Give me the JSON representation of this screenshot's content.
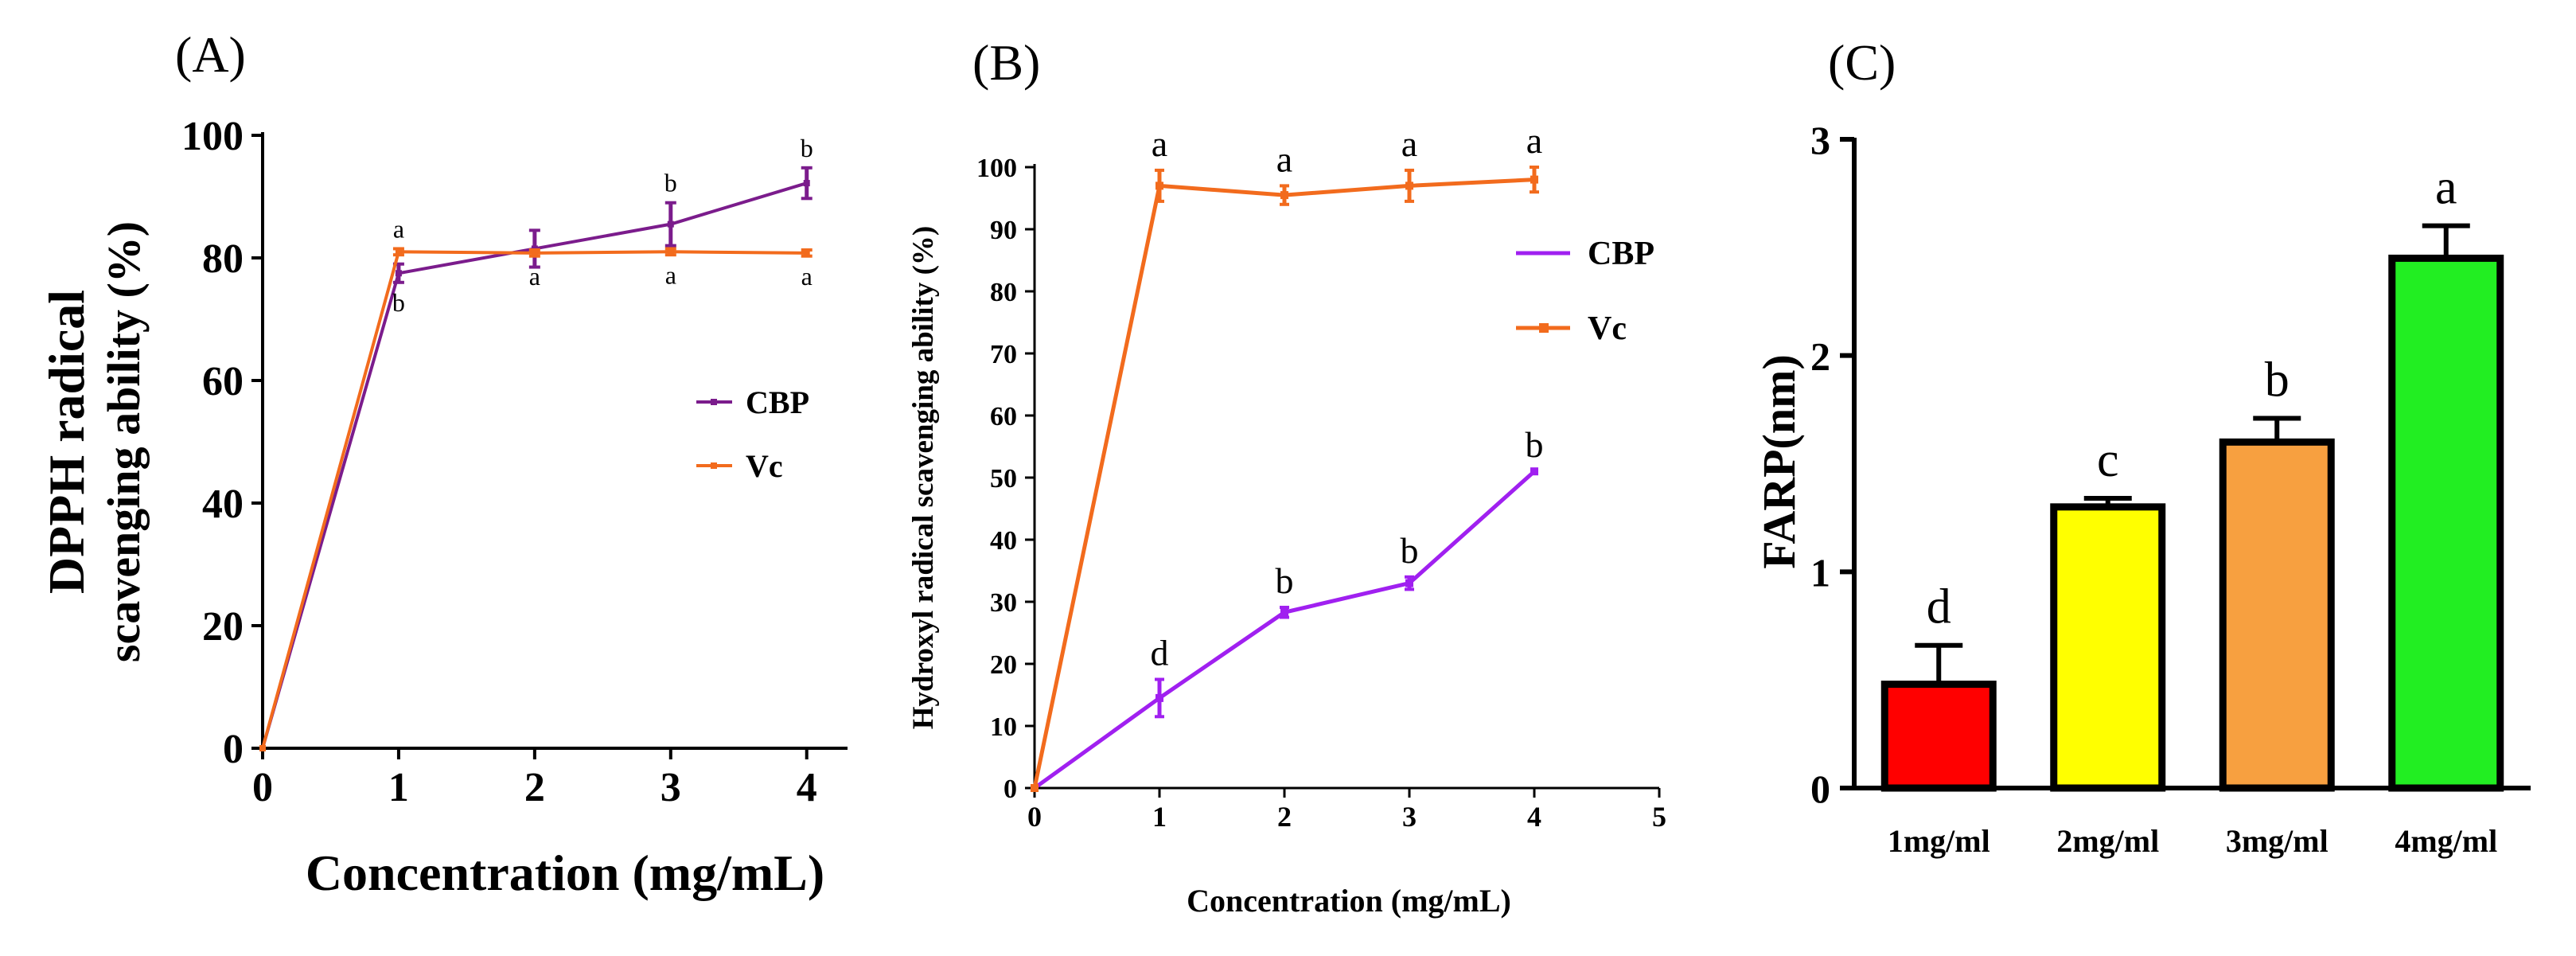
{
  "figure": {
    "panel_labels": [
      "(A)",
      "(B)",
      "(C)"
    ]
  },
  "colors": {
    "cbp_a": "#7B1C8C",
    "vc": "#F26B1D",
    "cbp_b": "#A020F0",
    "axis": "#000000"
  },
  "chart_data": [
    {
      "id": "A",
      "type": "line",
      "xlabel": "Concentration (mg/mL)",
      "ylabel_lines": [
        "DPPH radical",
        "scavenging ability (%)"
      ],
      "xlim": [
        0,
        4.3
      ],
      "ylim": [
        0,
        100
      ],
      "xticks": [
        0,
        1,
        2,
        3,
        4
      ],
      "yticks": [
        0,
        20,
        40,
        60,
        80,
        100
      ],
      "legend": "center-right",
      "series": [
        {
          "name": "CBP",
          "color": "#7B1C8C",
          "x": [
            0,
            1,
            2,
            3,
            4
          ],
          "y": [
            0,
            77.5,
            81.5,
            85.5,
            92.2
          ],
          "err": [
            0,
            1.5,
            3,
            3.5,
            2.5
          ],
          "labels": [
            "",
            "b",
            "",
            "b",
            "b"
          ],
          "label_pos": [
            "",
            "below",
            "",
            "above",
            "above"
          ]
        },
        {
          "name": "Vc",
          "color": "#F26B1D",
          "x": [
            0,
            1,
            2,
            3,
            4
          ],
          "y": [
            0,
            81,
            80.8,
            81,
            80.8
          ],
          "err": [
            0,
            0.5,
            0.5,
            0.5,
            0.5
          ],
          "labels": [
            "",
            "a",
            "a",
            "a",
            "a"
          ],
          "label_pos": [
            "",
            "above",
            "below",
            "below",
            "below"
          ]
        }
      ]
    },
    {
      "id": "B",
      "type": "line",
      "xlabel": "Concentration (mg/mL)",
      "ylabel": "Hydroxyl radical scavenging ability (%)",
      "xlim": [
        0,
        5
      ],
      "ylim": [
        0,
        100
      ],
      "xticks": [
        0,
        1,
        2,
        3,
        4,
        5
      ],
      "yticks": [
        0,
        10,
        20,
        30,
        40,
        50,
        60,
        70,
        80,
        90,
        100
      ],
      "legend": "top-right",
      "series": [
        {
          "name": "CBP",
          "color": "#A020F0",
          "x": [
            0,
            1,
            2,
            3,
            4
          ],
          "y": [
            0,
            14.5,
            28.3,
            33,
            51
          ],
          "err": [
            0,
            3,
            0.8,
            1,
            0
          ],
          "labels": [
            "",
            "d",
            "b",
            "b",
            "b"
          ],
          "label_pos": [
            "",
            "above",
            "above",
            "above",
            "above"
          ]
        },
        {
          "name": "Vc",
          "color": "#F26B1D",
          "x": [
            0,
            1,
            2,
            3,
            4
          ],
          "y": [
            0,
            97,
            95.5,
            97,
            98
          ],
          "err": [
            0,
            2.5,
            1.5,
            2.5,
            2
          ],
          "labels": [
            "",
            "a",
            "a",
            "a",
            "a"
          ],
          "label_pos": [
            "",
            "above",
            "above",
            "above",
            "above"
          ]
        }
      ]
    },
    {
      "id": "C",
      "type": "bar",
      "ylabel": "FARP(nm)",
      "categories": [
        "1mg/ml",
        "2mg/ml",
        "3mg/ml",
        "4mg/ml"
      ],
      "values": [
        0.48,
        1.3,
        1.6,
        2.45
      ],
      "errors": [
        0.18,
        0.04,
        0.11,
        0.15
      ],
      "labels": [
        "d",
        "c",
        "b",
        "a"
      ],
      "bar_colors": [
        "#FF0000",
        "#FFFF00",
        "#F7A040",
        "#22EE22"
      ],
      "ylim": [
        0,
        3
      ],
      "yticks": [
        0,
        1,
        2,
        3
      ]
    }
  ]
}
